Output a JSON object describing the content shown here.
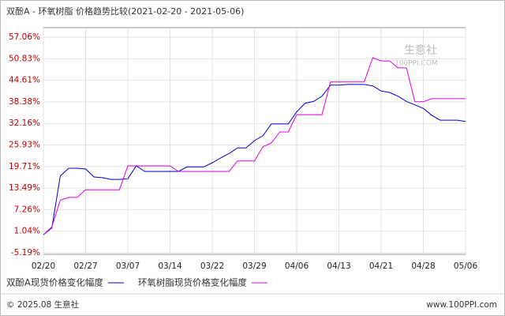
{
  "chart_data": {
    "type": "line",
    "title": "双酚A - 环氧树脂 价格趋势比较(2021-02-20 - 2021-05-06)",
    "watermark": "生意社",
    "watermark_url": "100PPI.COM",
    "footer_left": "© 2025.08 生意社",
    "footer_right": "www.100PPI.com",
    "categories": [
      "02/20",
      null,
      null,
      null,
      null,
      "02/27",
      null,
      null,
      null,
      null,
      "03/07",
      null,
      null,
      null,
      null,
      "03/14",
      null,
      null,
      null,
      null,
      "03/22",
      null,
      null,
      null,
      null,
      "03/29",
      null,
      null,
      null,
      null,
      "04/06",
      null,
      null,
      null,
      null,
      "04/13",
      null,
      null,
      null,
      null,
      "04/21",
      null,
      null,
      null,
      null,
      "04/28",
      null,
      null,
      null,
      null,
      "05/06"
    ],
    "series": [
      {
        "name": "双酚A现货价格变化幅度",
        "color": "#0000cc",
        "values": [
          0,
          2,
          17,
          19.2,
          19.2,
          19.0,
          16.7,
          16.5,
          16.0,
          16.0,
          16.2,
          19.9,
          18.3,
          18.3,
          18.3,
          18.3,
          18.3,
          19.6,
          19.6,
          19.6,
          20.8,
          22.2,
          23.5,
          25.1,
          25.1,
          27.2,
          28.6,
          32.0,
          32.0,
          32.0,
          35.5,
          38.0,
          38.5,
          40.0,
          43.2,
          43.2,
          43.4,
          43.4,
          43.4,
          43.0,
          41.5,
          41.1,
          40.0,
          38.5,
          37.5,
          36.5,
          34.5,
          33.1,
          33.1,
          33.1,
          32.7
        ]
      },
      {
        "name": "环氧树脂现货价格变化幅度",
        "color": "#e000e0",
        "values": [
          0,
          2.3,
          10.0,
          10.8,
          10.8,
          13.0,
          13.0,
          13.0,
          13.0,
          13.0,
          19.9,
          19.9,
          19.9,
          19.9,
          19.9,
          19.9,
          18.3,
          18.3,
          18.3,
          18.3,
          18.3,
          18.3,
          18.3,
          21.3,
          21.3,
          21.3,
          25.4,
          26.5,
          29.7,
          29.7,
          34.7,
          34.7,
          34.7,
          34.7,
          44.1,
          44.1,
          44.1,
          44.1,
          44.1,
          51.1,
          50.2,
          50.2,
          48.2,
          48.2,
          38.4,
          38.4,
          39.3,
          39.3,
          39.3,
          39.3,
          39.3
        ]
      }
    ],
    "ylim": [
      -5.19,
      57.06
    ],
    "yticks": [
      {
        "value": -5.19,
        "label": "-5.19%"
      },
      {
        "value": 1.04,
        "label": "1.04%"
      },
      {
        "value": 7.26,
        "label": "7.26%"
      },
      {
        "value": 13.49,
        "label": "13.49%"
      },
      {
        "value": 19.71,
        "label": "19.71%"
      },
      {
        "value": 25.93,
        "label": "25.93%"
      },
      {
        "value": 32.16,
        "label": "32.16%"
      },
      {
        "value": 38.38,
        "label": "38.38%"
      },
      {
        "value": 44.61,
        "label": "44.61%"
      },
      {
        "value": 50.83,
        "label": "50.83%"
      },
      {
        "value": 57.06,
        "label": "57.06%"
      }
    ],
    "grid": true
  }
}
